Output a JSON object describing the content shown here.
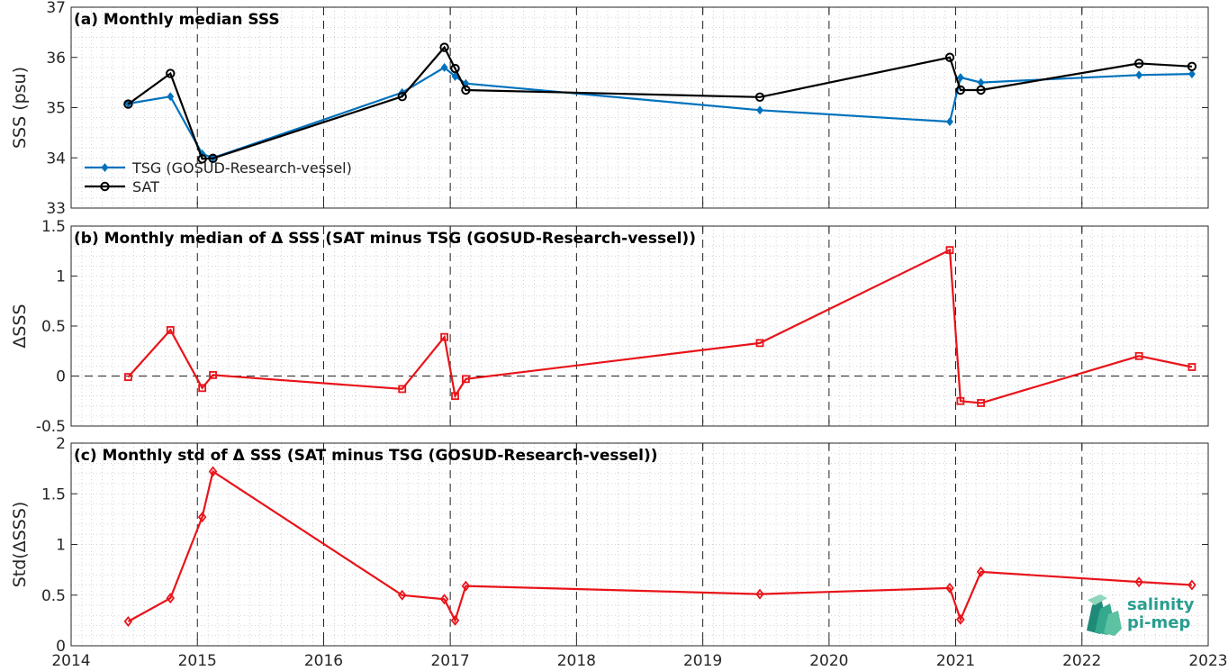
{
  "colors": {
    "tsg": "#0072BD",
    "sat": "#000000",
    "delta": "#E8141A",
    "grid": "#c8c8c8",
    "axis": "#262626",
    "logo": "#2a9d8f"
  },
  "logo": {
    "line1": "salinity",
    "line2": "pi-mep"
  },
  "chart_data": [
    {
      "type": "line",
      "title": "(a) Monthly median SSS",
      "ylabel": "SSS (psu)",
      "xlim": [
        "2014-01-01",
        "2023-01-01"
      ],
      "ylim": [
        33,
        37
      ],
      "yticks": [
        "33",
        "34",
        "35",
        "36",
        "37"
      ],
      "grid": true,
      "legend": "lower-left",
      "series": [
        {
          "name": "TSG (GOSUD-Research-vessel)",
          "marker": "diamond",
          "color": "#0072BD",
          "points": [
            [
              "2014-06-15",
              35.08
            ],
            [
              "2014-10-15",
              35.22
            ],
            [
              "2015-01-15",
              34.08
            ],
            [
              "2015-02-15",
              34.0
            ],
            [
              "2016-08-15",
              35.3
            ],
            [
              "2016-12-15",
              35.8
            ],
            [
              "2017-01-15",
              35.62
            ],
            [
              "2017-02-15",
              35.48
            ],
            [
              "2019-06-15",
              34.95
            ],
            [
              "2020-12-15",
              34.72
            ],
            [
              "2021-01-15",
              35.6
            ],
            [
              "2021-03-15",
              35.5
            ],
            [
              "2022-06-15",
              35.65
            ],
            [
              "2022-11-15",
              35.67
            ]
          ]
        },
        {
          "name": "SAT",
          "marker": "circle",
          "color": "#000000",
          "points": [
            [
              "2014-06-15",
              35.07
            ],
            [
              "2014-10-15",
              35.68
            ],
            [
              "2015-01-15",
              33.98
            ],
            [
              "2015-02-15",
              33.99
            ],
            [
              "2016-08-15",
              35.22
            ],
            [
              "2016-12-15",
              36.2
            ],
            [
              "2017-01-15",
              35.78
            ],
            [
              "2017-02-15",
              35.35
            ],
            [
              "2019-06-15",
              35.21
            ],
            [
              "2020-12-15",
              36.0
            ],
            [
              "2021-01-15",
              35.35
            ],
            [
              "2021-03-15",
              35.35
            ],
            [
              "2022-06-15",
              35.88
            ],
            [
              "2022-11-15",
              35.82
            ]
          ]
        }
      ]
    },
    {
      "type": "line",
      "title": "(b) Monthly median of Δ SSS (SAT minus TSG (GOSUD-Research-vessel))",
      "ylabel": "ΔSSS",
      "xlim": [
        "2014-01-01",
        "2023-01-01"
      ],
      "ylim": [
        -0.5,
        1.5
      ],
      "yticks": [
        "-0.5",
        "0",
        "0.5",
        "1",
        "1.5"
      ],
      "grid": true,
      "zero_line": true,
      "series": [
        {
          "marker": "square",
          "color": "#E8141A",
          "points": [
            [
              "2014-06-15",
              -0.01
            ],
            [
              "2014-10-15",
              0.46
            ],
            [
              "2015-01-15",
              -0.12
            ],
            [
              "2015-02-15",
              0.01
            ],
            [
              "2016-08-15",
              -0.13
            ],
            [
              "2016-12-15",
              0.39
            ],
            [
              "2017-01-15",
              -0.2
            ],
            [
              "2017-02-15",
              -0.03
            ],
            [
              "2019-06-15",
              0.33
            ],
            [
              "2020-12-15",
              1.26
            ],
            [
              "2021-01-15",
              -0.25
            ],
            [
              "2021-03-15",
              -0.27
            ],
            [
              "2022-06-15",
              0.2
            ],
            [
              "2022-11-15",
              0.09
            ]
          ]
        }
      ]
    },
    {
      "type": "line",
      "title": "(c) Monthly std of Δ SSS (SAT minus TSG (GOSUD-Research-vessel))",
      "ylabel": "Std(ΔSSS)",
      "xlim": [
        "2014-01-01",
        "2023-01-01"
      ],
      "ylim": [
        0,
        2
      ],
      "yticks": [
        "0",
        "0.5",
        "1",
        "1.5",
        "2"
      ],
      "xticks": [
        "2014",
        "2015",
        "2016",
        "2017",
        "2018",
        "2019",
        "2020",
        "2021",
        "2022",
        "2023"
      ],
      "grid": true,
      "series": [
        {
          "marker": "diamond",
          "color": "#E8141A",
          "points": [
            [
              "2014-06-15",
              0.24
            ],
            [
              "2014-10-15",
              0.47
            ],
            [
              "2015-01-15",
              1.27
            ],
            [
              "2015-02-15",
              1.72
            ],
            [
              "2016-08-15",
              0.5
            ],
            [
              "2016-12-15",
              0.46
            ],
            [
              "2017-01-15",
              0.25
            ],
            [
              "2017-02-15",
              0.59
            ],
            [
              "2019-06-15",
              0.51
            ],
            [
              "2020-12-15",
              0.57
            ],
            [
              "2021-01-15",
              0.26
            ],
            [
              "2021-03-15",
              0.73
            ],
            [
              "2022-06-15",
              0.63
            ],
            [
              "2022-11-15",
              0.6
            ]
          ]
        }
      ]
    }
  ]
}
